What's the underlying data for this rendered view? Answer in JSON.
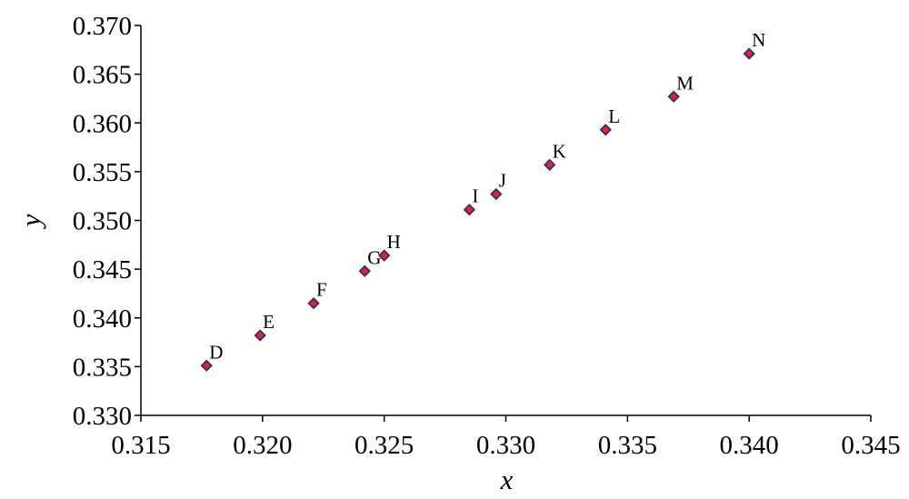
{
  "chart_data": {
    "type": "scatter",
    "title": "",
    "xlabel": "x",
    "ylabel": "y",
    "xlim": [
      0.315,
      0.345
    ],
    "ylim": [
      0.33,
      0.37
    ],
    "x_ticks": [
      "0.315",
      "0.320",
      "0.325",
      "0.330",
      "0.335",
      "0.340",
      "0.345"
    ],
    "y_ticks": [
      "0.330",
      "0.335",
      "0.340",
      "0.345",
      "0.350",
      "0.355",
      "0.360",
      "0.365",
      "0.370"
    ],
    "grid": false,
    "legend": "none",
    "marker": {
      "shape": "diamond",
      "fill": "#e8202a",
      "stroke": "#1a2a8c"
    },
    "points": [
      {
        "label": "D",
        "x": 0.3177,
        "y": 0.3351
      },
      {
        "label": "E",
        "x": 0.3199,
        "y": 0.3382
      },
      {
        "label": "F",
        "x": 0.3221,
        "y": 0.3415
      },
      {
        "label": "G",
        "x": 0.3242,
        "y": 0.3448
      },
      {
        "label": "H",
        "x": 0.325,
        "y": 0.3464
      },
      {
        "label": "I",
        "x": 0.3285,
        "y": 0.3511
      },
      {
        "label": "J",
        "x": 0.3296,
        "y": 0.3527
      },
      {
        "label": "K",
        "x": 0.3318,
        "y": 0.3557
      },
      {
        "label": "L",
        "x": 0.3341,
        "y": 0.3593
      },
      {
        "label": "M",
        "x": 0.3369,
        "y": 0.3627
      },
      {
        "label": "N",
        "x": 0.34,
        "y": 0.3671
      }
    ]
  }
}
